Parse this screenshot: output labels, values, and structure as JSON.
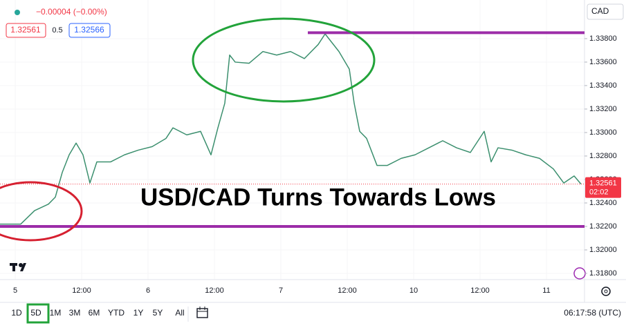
{
  "header": {
    "change": "−0.00004 (−0.00%)",
    "bid": "1.32561",
    "spread": "0.5",
    "ask": "1.32566",
    "currency": "CAD"
  },
  "chart_data": {
    "type": "line",
    "title": "USD/CAD Turns Towards Lows",
    "color": "#3b8f6e",
    "x": [
      -2.75,
      1,
      3.5,
      6,
      7.25,
      8.5,
      9.75,
      11,
      12.25,
      13.5,
      14.75,
      17.25,
      19.75,
      22.25,
      24.75,
      27.25,
      28.5,
      31,
      33.5,
      35.375,
      36.625,
      37.875,
      38.75,
      39.75,
      42.25,
      44.75,
      47.25,
      49.75,
      52.25,
      54.75,
      56,
      58.5,
      60.375,
      61.25,
      62.25,
      63.5,
      65.375,
      67.25,
      69.75,
      72.25,
      74.75,
      77.25,
      79.75,
      82.25,
      84.75,
      86,
      87.25,
      89.75,
      92.25,
      94.75,
      97.25,
      99.125,
      101,
      102.25
    ],
    "values": [
      1.3222,
      1.3222,
      1.32335,
      1.3239,
      1.3245,
      1.3266,
      1.3281,
      1.3291,
      1.3281,
      1.3257,
      1.3275,
      1.3275,
      1.3281,
      1.3285,
      1.3288,
      1.3295,
      1.3304,
      1.3298,
      1.3301,
      1.3281,
      1.3304,
      1.3325,
      1.3366,
      1.336,
      1.3359,
      1.3369,
      1.3366,
      1.3369,
      1.3363,
      1.3375,
      1.3384,
      1.3369,
      1.3354,
      1.3325,
      1.3301,
      1.3295,
      1.3272,
      1.3272,
      1.3278,
      1.3281,
      1.3287,
      1.3293,
      1.3287,
      1.3283,
      1.3301,
      1.3275,
      1.3287,
      1.3285,
      1.3281,
      1.3278,
      1.3269,
      1.3257,
      1.3263,
      1.32561
    ],
    "last_price": 1.32561,
    "countdown": "02:02",
    "hlines": [
      {
        "value": 1.3385,
        "start": 52.875,
        "color": "#9c2ca8"
      },
      {
        "value": 1.322,
        "start": -2.75,
        "color": "#9c2ca8"
      }
    ],
    "xlim": [
      -2.75,
      102.875
    ],
    "ylim": [
      1.31747,
      1.34129
    ],
    "xticks": [
      {
        "value": 0,
        "label": "5"
      },
      {
        "value": 12,
        "label": "12:00"
      },
      {
        "value": 24,
        "label": "6"
      },
      {
        "value": 36,
        "label": "12:00"
      },
      {
        "value": 48,
        "label": "7"
      },
      {
        "value": 60,
        "label": "12:00"
      },
      {
        "value": 72,
        "label": "10"
      },
      {
        "value": 84,
        "label": "12:00"
      },
      {
        "value": 96,
        "label": "11"
      }
    ],
    "yticks": [
      {
        "value": 1.318,
        "label": "1.31800"
      },
      {
        "value": 1.32,
        "label": "1.32000"
      },
      {
        "value": 1.322,
        "label": "1.32200"
      },
      {
        "value": 1.324,
        "label": "1.32400"
      },
      {
        "value": 1.326,
        "label": "1.32600"
      },
      {
        "value": 1.328,
        "label": "1.32800"
      },
      {
        "value": 1.33,
        "label": "1.33000"
      },
      {
        "value": 1.332,
        "label": "1.33200"
      },
      {
        "value": 1.334,
        "label": "1.33400"
      },
      {
        "value": 1.336,
        "label": "1.33600"
      },
      {
        "value": 1.338,
        "label": "1.33800"
      }
    ]
  },
  "toolbar": {
    "ranges": [
      "1D",
      "5D",
      "1M",
      "3M",
      "6M",
      "YTD",
      "1Y",
      "5Y",
      "All"
    ],
    "active_index": 1,
    "clock": "06:17:58 (UTC)"
  }
}
